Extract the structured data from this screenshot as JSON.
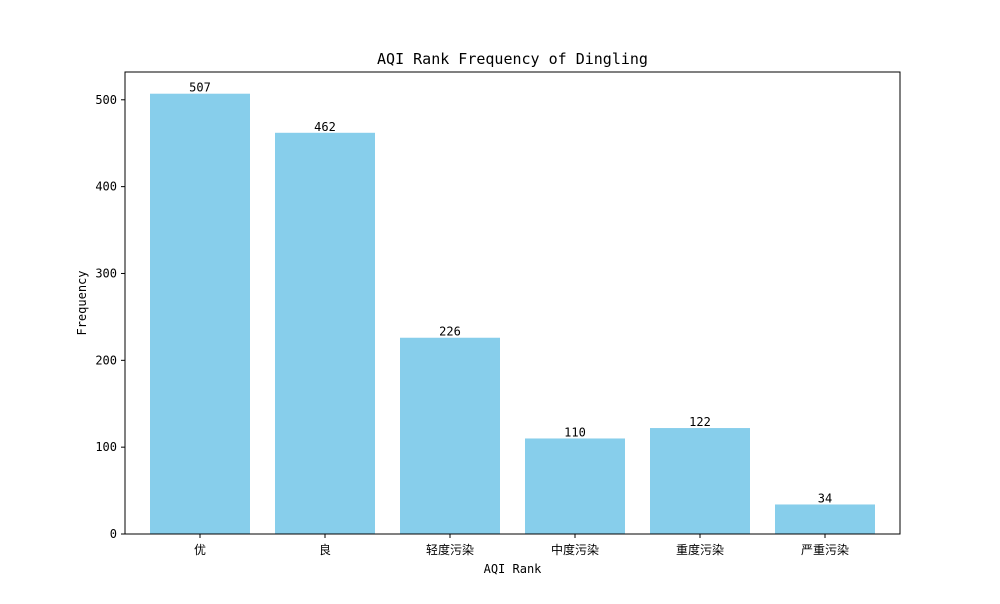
{
  "chart_data": {
    "type": "bar",
    "title": "AQI Rank Frequency of Dingling",
    "xlabel": "AQI Rank",
    "ylabel": "Frequency",
    "categories": [
      "优",
      "良",
      "轻度污染",
      "中度污染",
      "重度污染",
      "严重污染"
    ],
    "values": [
      507,
      462,
      226,
      110,
      122,
      34
    ],
    "data_labels": [
      "507",
      "462",
      "226",
      "110",
      "122",
      "34"
    ],
    "ylim": [
      0,
      532
    ],
    "yticks": [
      0,
      100,
      200,
      300,
      400,
      500
    ],
    "ytick_labels": [
      "0",
      "100",
      "200",
      "300",
      "400",
      "500"
    ],
    "bar_color": "#87CEEB",
    "grid": false,
    "legend": "none"
  }
}
